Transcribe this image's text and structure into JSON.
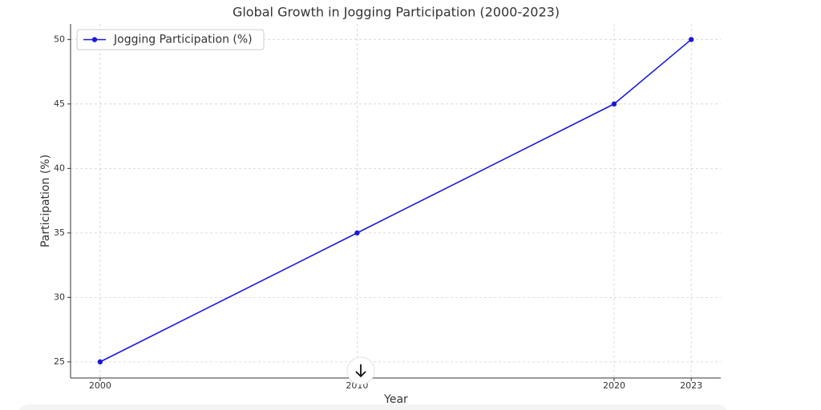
{
  "chart_data": {
    "type": "line",
    "title": "Global Growth in Jogging Participation (2000-2023)",
    "x_label": "Year",
    "y_label": "Participation (%)",
    "x": [
      2000,
      2010,
      2020,
      2023
    ],
    "series": [
      {
        "name": "Jogging Participation (%)",
        "color": "#1a1ad6",
        "values": [
          25,
          35,
          45,
          50
        ]
      }
    ],
    "xlim": [
      1998.85,
      2024.15
    ],
    "xticks": [
      2000,
      2010,
      2020,
      2023
    ],
    "ylim": [
      23.75,
      51.2
    ],
    "yticks": [
      25,
      30,
      35,
      40,
      45,
      50
    ],
    "grid": true,
    "legend": "upper left"
  }
}
